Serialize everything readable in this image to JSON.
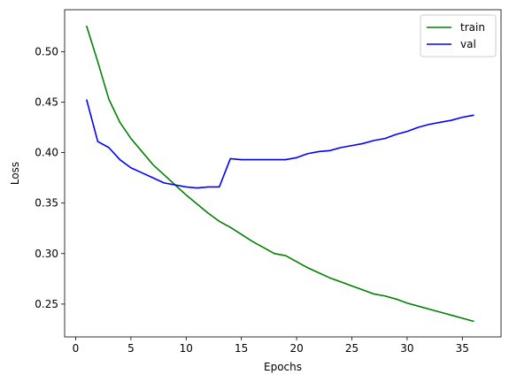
{
  "chart_data": {
    "type": "line",
    "title": "",
    "xlabel": "Epochs",
    "ylabel": "Loss",
    "xlim": [
      -1,
      38.5
    ],
    "ylim": [
      0.2175,
      0.5415
    ],
    "xticks": [
      0,
      5,
      10,
      15,
      20,
      25,
      30,
      35
    ],
    "yticks": [
      0.25,
      0.3,
      0.35,
      0.4,
      0.45,
      0.5
    ],
    "grid": false,
    "legend": "top-right",
    "x": [
      1,
      2,
      3,
      4,
      5,
      6,
      7,
      8,
      9,
      10,
      11,
      12,
      13,
      14,
      15,
      16,
      17,
      18,
      19,
      20,
      21,
      22,
      23,
      24,
      25,
      26,
      27,
      28,
      29,
      30,
      31,
      32,
      33,
      34,
      35,
      36
    ],
    "series": [
      {
        "name": "train",
        "color": "#008000",
        "values": [
          0.525,
          0.49,
          0.453,
          0.43,
          0.414,
          0.401,
          0.388,
          0.378,
          0.368,
          0.358,
          0.349,
          0.34,
          0.332,
          0.326,
          0.319,
          0.312,
          0.306,
          0.3,
          0.298,
          0.292,
          0.286,
          0.281,
          0.276,
          0.272,
          0.268,
          0.264,
          0.26,
          0.258,
          0.255,
          0.251,
          0.248,
          0.245,
          0.242,
          0.239,
          0.236,
          0.233
        ]
      },
      {
        "name": "val",
        "color": "#0000ff",
        "values": [
          0.452,
          0.411,
          0.405,
          0.393,
          0.385,
          0.38,
          0.375,
          0.37,
          0.368,
          0.366,
          0.365,
          0.366,
          0.366,
          0.394,
          0.393,
          0.393,
          0.393,
          0.393,
          0.393,
          0.395,
          0.399,
          0.401,
          0.402,
          0.405,
          0.407,
          0.409,
          0.412,
          0.414,
          0.418,
          0.421,
          0.425,
          0.428,
          0.43,
          0.432,
          0.435,
          0.437
        ]
      }
    ]
  }
}
